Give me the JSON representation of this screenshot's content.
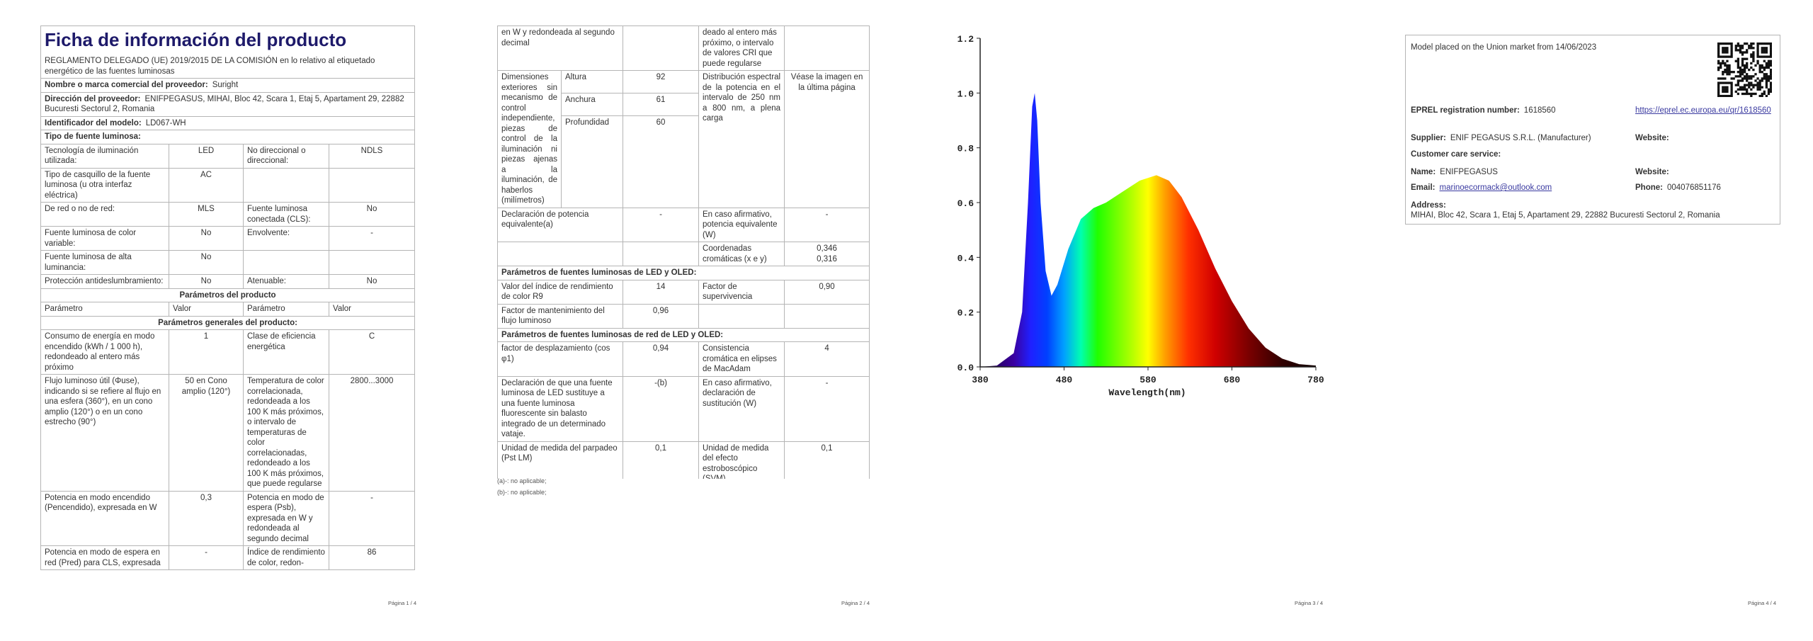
{
  "page1": {
    "title": "Ficha de información del producto",
    "regulation": "REGLAMENTO DELEGADO (UE) 2019/2015 DE LA COMISIÓN en lo relativo al etiquetado energético de las fuentes luminosas",
    "supplier_name": {
      "label": "Nombre o marca comercial del proveedor:",
      "value": "Suright"
    },
    "supplier_address": {
      "label": "Dirección del proveedor:",
      "value": "ENIFPEGASUS, MIHAI, Bloc 42, Scara 1, Etaj 5, Apartament 29, 22882 Bucuresti Sectorul 2, Romania"
    },
    "model": {
      "label": "Identificador del modelo:",
      "value": "LD067-WH"
    },
    "source_type": "Tipo de fuente luminosa:",
    "type_rows": [
      [
        "Tecnología de iluminación utilizada:",
        "LED",
        "No direccional o direccional:",
        "NDLS"
      ],
      [
        "Tipo de casquillo de la fuente luminosa (u otra interfaz eléctrica)",
        "AC",
        null,
        null
      ],
      [
        "De red o no de red:",
        "MLS",
        "Fuente luminosa conectada (CLS):",
        "No"
      ],
      [
        "Fuente luminosa de color variable:",
        "No",
        "Envolvente:",
        "-"
      ],
      [
        "Fuente luminosa de alta luminancia:",
        "No",
        null,
        null
      ],
      [
        "Protección antideslumbramiento:",
        "No",
        "Atenuable:",
        "No"
      ]
    ],
    "product_params": "Parámetros del producto",
    "column_headers": [
      "Parámetro",
      "Valor",
      "Parámetro",
      "Valor"
    ],
    "general_params": "Parámetros generales del producto:",
    "general_rows": [
      [
        "Consumo de energía en modo encendido (kWh / 1 000 h), redondeado al entero más próximo",
        "1",
        "Clase de eficiencia energética",
        "C"
      ],
      [
        "Flujo luminoso útil (Φuse), indicando si se refiere al flujo en una esfera (360°), en un cono amplio (120°) o en un cono estrecho (90°)",
        "50 en Cono amplio (120°)",
        "Temperatura de color correlacionada, redondeada a los 100 K más próximos, o intervalo de temperaturas de color correlacionadas, redondeado a los 100 K más próximos, que puede regularse",
        "2800...3000"
      ],
      [
        "Potencia en modo encendido (Pencendido), expresada en W",
        "0,3",
        "Potencia en modo de espera (Psb), expresada en W y redondeada al segundo decimal",
        "-"
      ],
      [
        "Potencia en modo de espera en red (Pred) para CLS, expresada",
        "-",
        "Índice de rendimiento de color, redon-",
        "86"
      ]
    ],
    "page_number": "Página 1 / 4"
  },
  "page2": {
    "rows_top": [
      [
        "en W y redondeada al segundo decimal",
        null,
        "deado al entero más próximo, o intervalo de valores CRI que puede regularse",
        null
      ]
    ],
    "dimensions": {
      "label": "Dimensiones exteriores sin mecanismo de control independiente, piezas de control de la iluminación ni piezas ajenas a la iluminación, de haberlos (milímetros)",
      "items": [
        {
          "name": "Altura",
          "value": "92"
        },
        {
          "name": "Anchura",
          "value": "61"
        },
        {
          "name": "Profundidad",
          "value": "60"
        }
      ],
      "spd_label": "Distribución espectral de la potencia en el intervalo de 250 nm a 800 nm, a plena carga",
      "spd_value": "Véase la imagen en la última página"
    },
    "rows_mid": [
      [
        "Declaración de potencia equivalente(a)",
        "-",
        "En caso afirmativo, potencia equivalente (W)",
        "-"
      ],
      [
        null,
        null,
        "Coordenadas cromáticas (x e y)",
        [
          "0,346",
          "0,316"
        ]
      ]
    ],
    "led_params": "Parámetros de fuentes luminosas de LED y OLED:",
    "led_rows": [
      [
        "Valor del índice de rendimiento de color R9",
        "14",
        "Factor de supervivencia",
        "0,90"
      ],
      [
        "Factor de mantenimiento del flujo luminoso",
        "0,96",
        null,
        null
      ]
    ],
    "mains_params": "Parámetros de fuentes luminosas de red de LED y OLED:",
    "mains_rows": [
      [
        "factor de desplazamiento (cos φ1)",
        "0,94",
        "Consistencia cromática en elipses de MacAdam",
        "4"
      ],
      [
        "Declaración de que una fuente luminosa de LED sustituye a una fuente luminosa fluorescente sin balasto integrado de un determinado vataje.",
        "-(b)",
        "En caso afirmativo, declaración de sustitución (W)",
        "-"
      ],
      [
        "Unidad de medida del parpadeo (Pst LM)",
        "0,1",
        "Unidad de medida del efecto estroboscópico (SVM)",
        "0,1"
      ]
    ],
    "footnotes": [
      "(a)-: no aplicable;",
      "(b)-: no aplicable;"
    ],
    "page_number": "Página 2 / 4"
  },
  "page3": {
    "spectrum": {
      "yticks": [
        {
          "value": 0,
          "label": "0.0"
        },
        {
          "value": 0.2,
          "label": "0.2"
        },
        {
          "value": 0.4,
          "label": "0.4"
        },
        {
          "value": 0.6,
          "label": "0.6"
        },
        {
          "value": 0.8,
          "label": "0.8"
        },
        {
          "value": 1,
          "label": "1.0"
        },
        {
          "value": 1.2,
          "label": "1.2"
        }
      ],
      "xticks": [
        380,
        480,
        580,
        680,
        780
      ],
      "xlabel": "Wavelength(nm)"
    },
    "page_number": "Página 3 / 4"
  },
  "page4": {
    "market": "Model placed on the Union market from 14/06/2023",
    "eprel": {
      "label": "EPREL registration number:",
      "value": "1618560",
      "link": "https://eprel.ec.europa.eu/qr/1618560"
    },
    "supplier": {
      "label": "Supplier:",
      "value": "ENIF PEGASUS S.R.L. (Manufacturer)",
      "website": "Website:"
    },
    "customer_care": "Customer care service:",
    "name": {
      "label": "Name:",
      "value": "ENIFPEGASUS",
      "website": "Website:"
    },
    "email": {
      "label": "Email:",
      "value": "marinoecormack@outlook.com"
    },
    "phone": {
      "label": "Phone:",
      "value": "004076851176"
    },
    "address": {
      "label": "Address:",
      "value": "MIHAI, Bloc 42, Scara 1, Etaj 5, Apartament 29, 22882 Bucuresti Sectorul 2, Romania"
    },
    "page_number": "Página 4 / 4"
  }
}
